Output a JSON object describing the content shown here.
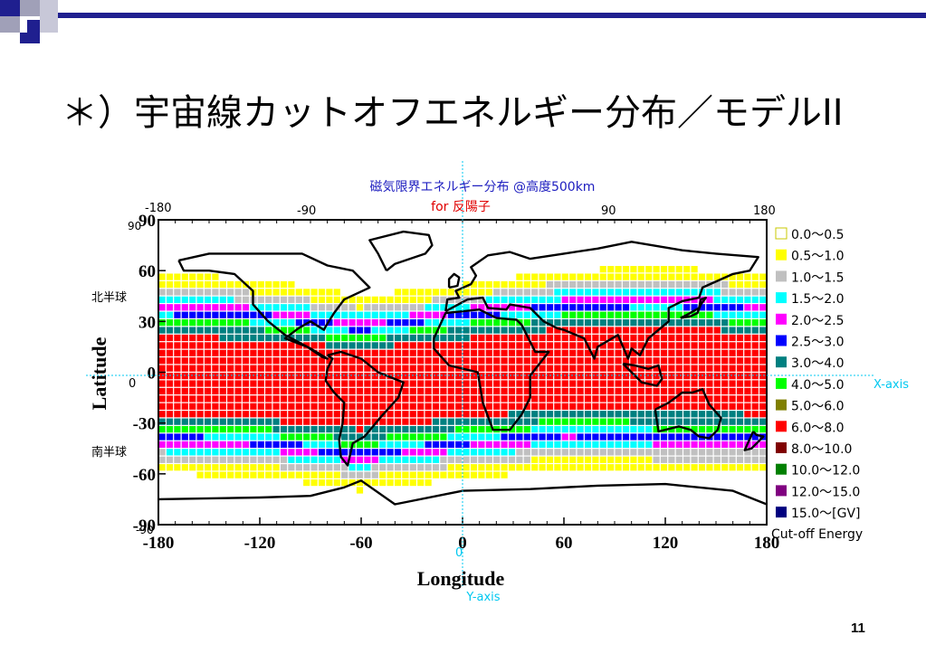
{
  "slide": {
    "title": "＊）宇宙線カットオフエネルギー分布／モデルII",
    "page_number": "11"
  },
  "colors": {
    "deco_navy": "#1f1f8f",
    "deco_gray": "#a0a0b8",
    "axis_cyan": "#00c8f0",
    "title_blue": "#2020c0",
    "subtitle_red": "#e00000"
  },
  "chart_data": {
    "type": "heatmap",
    "title": "磁気限界エネルギー分布 @高度500km",
    "subtitle": "for 反陽子",
    "xlabel": "Longitude",
    "ylabel": "Latitude",
    "x_axis_tag": "Y-axis",
    "y_axis_tag": "X-axis",
    "legend_title": "Cut-off Energy",
    "north_label": "北半球",
    "south_label": "南半球",
    "origin_label_bottom": "0",
    "origin_label_left": "0",
    "xlim": [
      -180,
      180
    ],
    "ylim": [
      -90,
      90
    ],
    "x_ticks_bottom": [
      "-180",
      "-120",
      "-60",
      "0",
      "60",
      "120",
      "180"
    ],
    "x_ticks_top": [
      "-180",
      "-90",
      "",
      "90",
      "180"
    ],
    "y_ticks": [
      "90",
      "60",
      "30",
      "0",
      "-30",
      "-60",
      "-90"
    ],
    "top_left_tick": "-180",
    "small_90_label": "90",
    "small_m90_label": "-90",
    "legend": [
      {
        "label": "0.0〜0.5",
        "color": "#ffffff"
      },
      {
        "label": "0.5〜1.0",
        "color": "#ffff00"
      },
      {
        "label": "1.0〜1.5",
        "color": "#c0c0c0"
      },
      {
        "label": "1.5〜2.0",
        "color": "#00ffff"
      },
      {
        "label": "2.0〜2.5",
        "color": "#ff00ff"
      },
      {
        "label": "2.5〜3.0",
        "color": "#0000ff"
      },
      {
        "label": "3.0〜4.0",
        "color": "#008080"
      },
      {
        "label": "4.0〜5.0",
        "color": "#00ff00"
      },
      {
        "label": "5.0〜6.0",
        "color": "#808000"
      },
      {
        "label": "6.0〜8.0",
        "color": "#ff0000"
      },
      {
        "label": "8.0〜10.0",
        "color": "#800000"
      },
      {
        "label": "10.0〜12.0",
        "color": "#008000"
      },
      {
        "label": "12.0〜15.0",
        "color": "#800080"
      },
      {
        "label": "15.0〜[GV]",
        "color": "#000080"
      }
    ],
    "band_profile_lat_lon": [
      {
        "lon": -180,
        "bands_lat": [
          58,
          50,
          45,
          40,
          37,
          34,
          31,
          27,
          22
        ]
      },
      {
        "lon": -120,
        "bands_lat": [
          55,
          47,
          42,
          38,
          35,
          32,
          29,
          25,
          19
        ]
      },
      {
        "lon": -60,
        "bands_lat": [
          45,
          38,
          34,
          30,
          27,
          24,
          21,
          18,
          14
        ]
      },
      {
        "lon": 0,
        "bands_lat": [
          52,
          45,
          41,
          38,
          35,
          32,
          29,
          26,
          20
        ]
      },
      {
        "lon": 60,
        "bands_lat": [
          60,
          53,
          48,
          43,
          40,
          37,
          34,
          31,
          26
        ]
      },
      {
        "lon": 120,
        "bands_lat": [
          62,
          55,
          50,
          45,
          42,
          39,
          36,
          33,
          28
        ]
      },
      {
        "lon": 180,
        "bands_lat": [
          58,
          50,
          45,
          40,
          37,
          34,
          31,
          27,
          22
        ]
      }
    ],
    "band_profile_south": [
      {
        "lon": -180,
        "bands_lat": [
          -60,
          -52,
          -47,
          -43,
          -40,
          -37,
          -34,
          -30,
          -25
        ]
      },
      {
        "lon": -120,
        "bands_lat": [
          -62,
          -55,
          -50,
          -46,
          -43,
          -40,
          -37,
          -33,
          -28
        ]
      },
      {
        "lon": -60,
        "bands_lat": [
          -70,
          -62,
          -57,
          -53,
          -50,
          -47,
          -44,
          -40,
          -34
        ]
      },
      {
        "lon": 0,
        "bands_lat": [
          -63,
          -55,
          -50,
          -46,
          -43,
          -40,
          -37,
          -33,
          -27
        ]
      },
      {
        "lon": 60,
        "bands_lat": [
          -58,
          -50,
          -45,
          -41,
          -38,
          -35,
          -32,
          -28,
          -22
        ]
      },
      {
        "lon": 120,
        "bands_lat": [
          -60,
          -52,
          -47,
          -43,
          -40,
          -37,
          -34,
          -30,
          -24
        ]
      },
      {
        "lon": 180,
        "bands_lat": [
          -60,
          -52,
          -47,
          -43,
          -40,
          -37,
          -34,
          -30,
          -25
        ]
      }
    ],
    "grid": true
  }
}
